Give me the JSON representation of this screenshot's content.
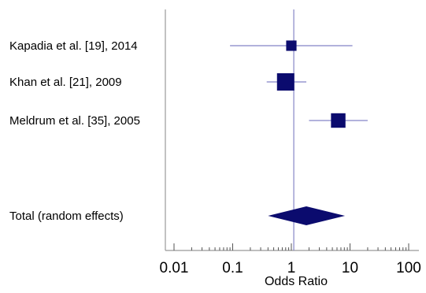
{
  "chart_data": {
    "type": "forest",
    "xlabel": "Odds Ratio",
    "x_scale": "log",
    "xlim": [
      0.01,
      100
    ],
    "major_ticks": [
      {
        "value": 0.01,
        "label": "0.01"
      },
      {
        "value": 0.1,
        "label": "0.1"
      },
      {
        "value": 1,
        "label": "1"
      },
      {
        "value": 10,
        "label": "10"
      },
      {
        "value": 100,
        "label": "100"
      }
    ],
    "reference_line": 1.1,
    "studies": [
      {
        "label": "Kapadia et al. [19], 2014",
        "or": 1.0,
        "ci_low": 0.09,
        "ci_high": 11.0,
        "weight": 0.1
      },
      {
        "label": "Khan et al. [21], 2009",
        "or": 0.8,
        "ci_low": 0.38,
        "ci_high": 1.8,
        "weight": 0.5
      },
      {
        "label": "Meldrum et al. [35], 2005",
        "or": 6.3,
        "ci_low": 2.0,
        "ci_high": 20.0,
        "weight": 0.3
      }
    ],
    "pooled": {
      "label": "Total (random effects)",
      "or": 1.8,
      "ci_low": 0.4,
      "ci_high": 8.2
    },
    "colors": {
      "marker": "#0b0b6e",
      "line": "#8585c6",
      "axis": "#999999",
      "tick": "#555555"
    }
  }
}
